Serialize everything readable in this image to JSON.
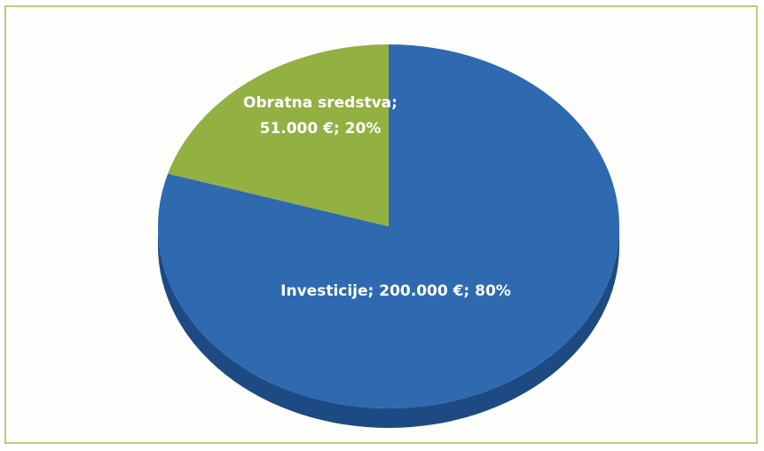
{
  "chart_data": {
    "type": "pie",
    "slices": [
      {
        "name": "Investicije",
        "value": 200000,
        "percent": 80,
        "label_line1": "Investicije; 200.000 €; 80%",
        "color": "#2f69b0",
        "side_color": "#1d4a82"
      },
      {
        "name": "Obratna sredstva",
        "value": 51000,
        "percent": 20,
        "label_line1": "Obratna sredstva;",
        "label_line2": "51.000 €; 20%",
        "color": "#93b043",
        "side_color": "#6e8a2c"
      }
    ]
  },
  "colors": {
    "frame_border": "#b9cf7a",
    "label_text": "#ffffff"
  }
}
